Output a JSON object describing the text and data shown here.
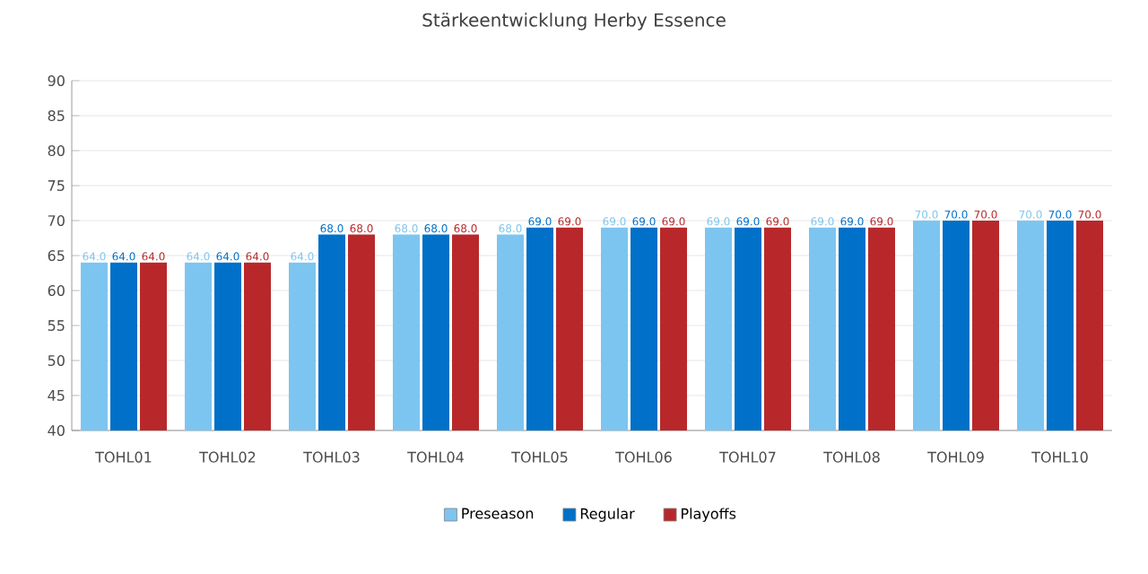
{
  "chart_data": {
    "type": "bar",
    "title": "Stärkeentwicklung Herby Essence",
    "categories": [
      "TOHL01",
      "TOHL02",
      "TOHL03",
      "TOHL04",
      "TOHL05",
      "TOHL06",
      "TOHL07",
      "TOHL08",
      "TOHL09",
      "TOHL10"
    ],
    "series": [
      {
        "name": "Preseason",
        "color": "#7cc5f0",
        "values": [
          64,
          64,
          64,
          68,
          68,
          69,
          69,
          69,
          70,
          70
        ],
        "value_labels": [
          "64.0",
          "64.0",
          "64.0",
          "68.0",
          "68.0",
          "69.0",
          "69.0",
          "69.0",
          "70.0",
          "70.0"
        ]
      },
      {
        "name": "Regular",
        "color": "#0070c8",
        "values": [
          64,
          64,
          68,
          68,
          69,
          69,
          69,
          69,
          70,
          70
        ],
        "value_labels": [
          "64.0",
          "64.0",
          "68.0",
          "68.0",
          "69.0",
          "69.0",
          "69.0",
          "69.0",
          "70.0",
          "70.0"
        ]
      },
      {
        "name": "Playoffs",
        "color": "#b8282b",
        "values": [
          64,
          64,
          68,
          68,
          69,
          69,
          69,
          69,
          70,
          70
        ],
        "value_labels": [
          "64.0",
          "64.0",
          "68.0",
          "68.0",
          "69.0",
          "69.0",
          "69.0",
          "69.0",
          "70.0",
          "70.0"
        ]
      }
    ],
    "ylim": [
      40,
      90
    ],
    "yticks": [
      40,
      45,
      50,
      55,
      60,
      65,
      70,
      75,
      80,
      85,
      90
    ],
    "grid": "y",
    "legend": "bottom"
  }
}
